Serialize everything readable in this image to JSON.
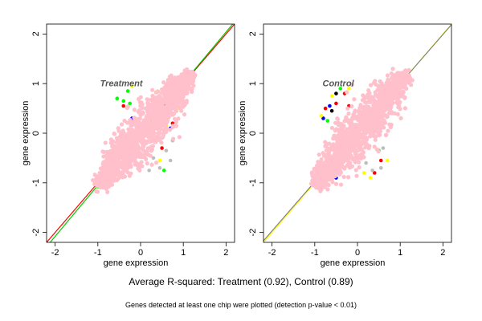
{
  "chart_data": [
    {
      "type": "scatter",
      "title": "Treatment",
      "xlabel": "gene expression",
      "ylabel": "gene expression",
      "xlim": [
        -2.2,
        2.2
      ],
      "ylim": [
        -2.2,
        2.2
      ],
      "xticks": [
        -2,
        -1,
        0,
        1,
        2
      ],
      "yticks": [
        -2,
        -1,
        0,
        1,
        2
      ],
      "grid": false,
      "cloud": {
        "color": "#ffc0cb",
        "lower_left": [
          -1.0,
          -1.05
        ],
        "upper_right": [
          1.2,
          1.2
        ],
        "outliers": [
          {
            "color": "#00ff00",
            "points": [
              [
                -1.0,
                -1.08
              ],
              [
                -0.4,
                0.65
              ],
              [
                -0.55,
                0.7
              ],
              [
                -0.25,
                0.6
              ],
              [
                0.55,
                -0.75
              ],
              [
                -0.85,
                -1.05
              ],
              [
                -0.3,
                0.85
              ]
            ]
          },
          {
            "color": "#0000ff",
            "points": [
              [
                -0.8,
                -0.95
              ],
              [
                -0.7,
                -0.45
              ],
              [
                -0.2,
                0.3
              ],
              [
                0.7,
                0.1
              ]
            ]
          },
          {
            "color": "#ff0000",
            "points": [
              [
                -0.4,
                0.55
              ],
              [
                0.75,
                0.2
              ],
              [
                0.5,
                -0.3
              ]
            ]
          },
          {
            "color": "#ffff00",
            "points": [
              [
                0.3,
                0.7
              ],
              [
                0.6,
                0.15
              ],
              [
                -0.2,
                0.95
              ],
              [
                0.4,
                0.85
              ],
              [
                0.9,
                0.5
              ],
              [
                0.45,
                -0.55
              ]
            ]
          },
          {
            "color": "#bebebe",
            "points": [
              [
                0.3,
                -0.5
              ],
              [
                0.45,
                -0.7
              ],
              [
                0.6,
                -0.35
              ],
              [
                0.2,
                -0.75
              ],
              [
                0.7,
                -0.55
              ],
              [
                0.75,
                -0.15
              ]
            ]
          }
        ]
      },
      "fit_lines": [
        {
          "color": "#ff0000",
          "slope": 1.0,
          "intercept": 0.0
        },
        {
          "color": "#00cc00",
          "slope": 1.03,
          "intercept": -0.02
        }
      ]
    },
    {
      "type": "scatter",
      "title": "Control",
      "xlabel": "gene expression",
      "ylabel": "gene expression",
      "xlim": [
        -2.2,
        2.2
      ],
      "ylim": [
        -2.2,
        2.2
      ],
      "xticks": [
        -2,
        -1,
        0,
        1,
        2
      ],
      "yticks": [
        -2,
        -1,
        0,
        1,
        2
      ],
      "grid": false,
      "cloud": {
        "color": "#ffc0cb",
        "lower_left": [
          -1.0,
          -1.05
        ],
        "upper_right": [
          1.15,
          1.2
        ],
        "outliers": [
          {
            "color": "#ff0000",
            "points": [
              [
                -0.75,
                0.5
              ],
              [
                -0.5,
                0.6
              ],
              [
                -0.3,
                0.8
              ],
              [
                -0.2,
                0.55
              ],
              [
                0.4,
                -0.8
              ],
              [
                0.55,
                -0.55
              ]
            ]
          },
          {
            "color": "#0000ff",
            "points": [
              [
                -0.8,
                0.3
              ],
              [
                -0.65,
                0.55
              ],
              [
                -0.55,
                -0.75
              ],
              [
                -0.5,
                -0.9
              ]
            ]
          },
          {
            "color": "#00ff00",
            "points": [
              [
                -0.4,
                0.9
              ],
              [
                -0.7,
                0.25
              ],
              [
                0.5,
                -0.35
              ]
            ]
          },
          {
            "color": "#ffff00",
            "points": [
              [
                -0.6,
                0.75
              ],
              [
                -0.85,
                0.35
              ],
              [
                0.3,
                -0.9
              ],
              [
                0.7,
                -0.55
              ],
              [
                -0.2,
                0.9
              ],
              [
                0.15,
                -0.8
              ]
            ]
          },
          {
            "color": "#bebebe",
            "points": [
              [
                0.2,
                -0.6
              ],
              [
                0.35,
                -0.75
              ],
              [
                0.6,
                -0.3
              ],
              [
                0.55,
                -0.7
              ],
              [
                -0.75,
                -0.45
              ]
            ]
          },
          {
            "color": "#000000",
            "points": [
              [
                -0.5,
                0.8
              ],
              [
                -0.6,
                0.45
              ]
            ]
          }
        ]
      },
      "fit_lines": [
        {
          "color": "#ffff00",
          "slope": 1.0,
          "intercept": 0.0
        },
        {
          "color": "#808080",
          "slope": 0.99,
          "intercept": 0.01
        }
      ]
    }
  ],
  "captions": {
    "average": "Average R-squared: Treatment (0.92), Control (0.89)",
    "note": "Genes detected at least one chip were plotted (detection p-value < 0.01)"
  }
}
